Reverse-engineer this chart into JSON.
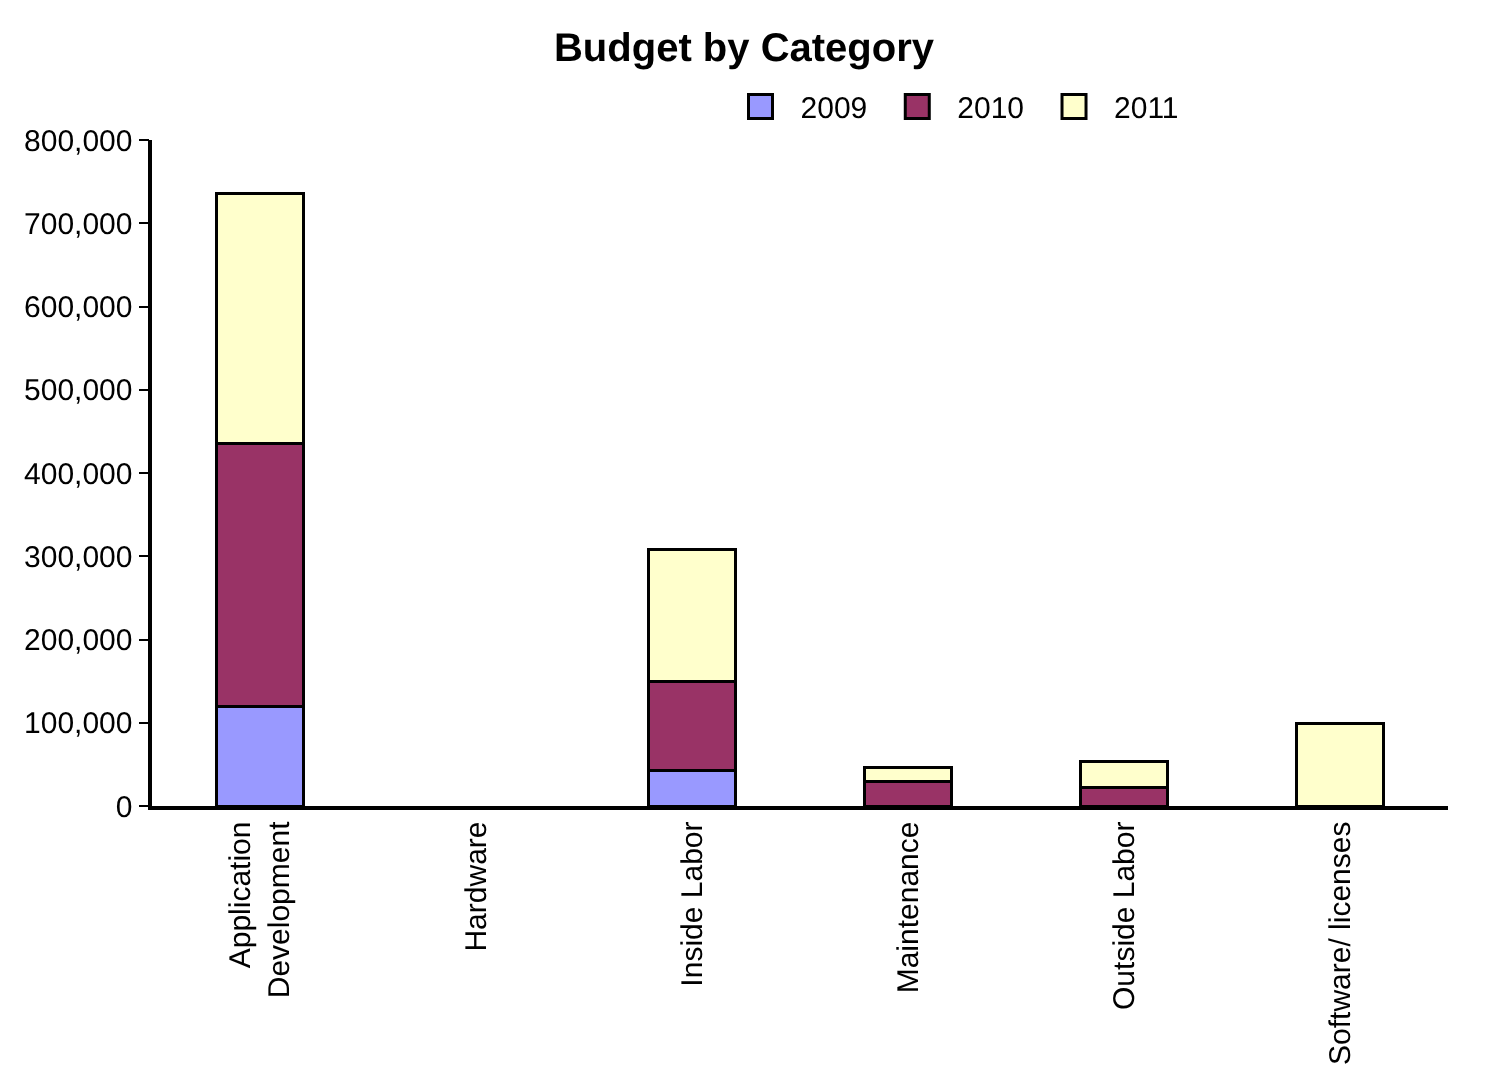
{
  "chart_data": {
    "type": "bar",
    "title": "Budget by Category",
    "stacked": true,
    "categories": [
      "Application Development",
      "Hardware",
      "Inside Labor",
      "Maintenance",
      "Outside Labor",
      "Software/ licenses"
    ],
    "series": [
      {
        "name": "2009",
        "color": "#9999ff",
        "values": [
          120000,
          0,
          43000,
          0,
          0,
          0
        ]
      },
      {
        "name": "2010",
        "color": "#993366",
        "values": [
          316000,
          0,
          107000,
          29000,
          22000,
          0
        ]
      },
      {
        "name": "2011",
        "color": "#ffffcc",
        "values": [
          300000,
          0,
          158000,
          17000,
          31000,
          99000
        ]
      }
    ],
    "ylim": [
      0,
      800000
    ],
    "yticks": [
      {
        "value": 0,
        "label": "0"
      },
      {
        "value": 100000,
        "label": "100,000"
      },
      {
        "value": 200000,
        "label": "200,000"
      },
      {
        "value": 300000,
        "label": "300,000"
      },
      {
        "value": 400000,
        "label": "400,000"
      },
      {
        "value": 500000,
        "label": "500,000"
      },
      {
        "value": 600000,
        "label": "600,000"
      },
      {
        "value": 700000,
        "label": "700,000"
      },
      {
        "value": 800000,
        "label": "800,000"
      }
    ],
    "grid": false,
    "legend": "top"
  }
}
